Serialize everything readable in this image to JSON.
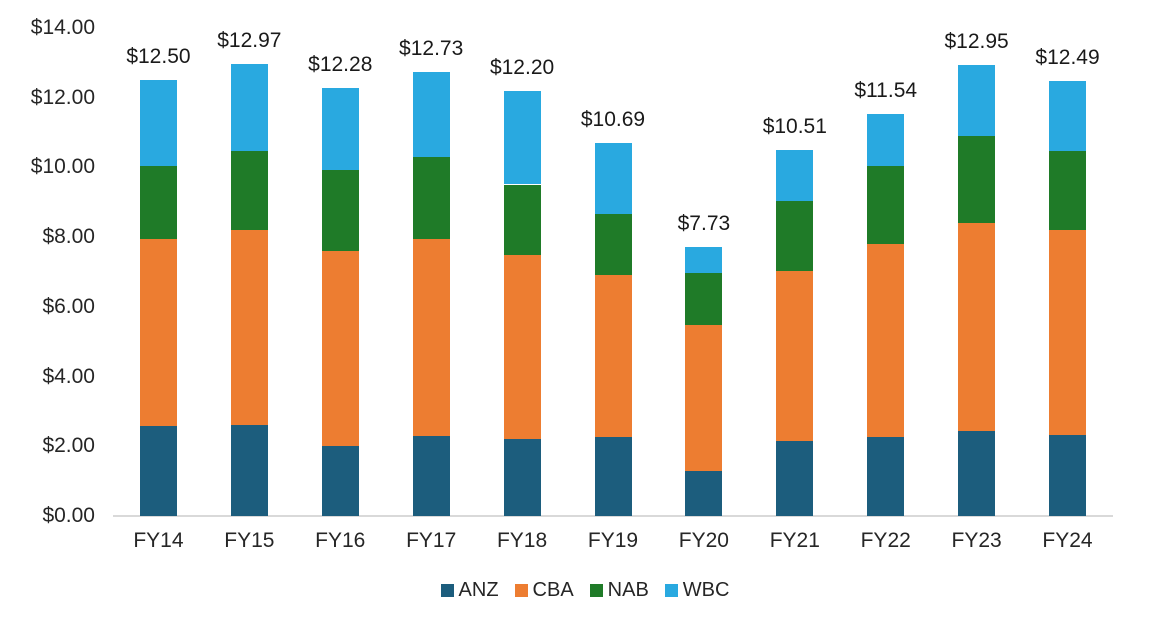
{
  "chart_data": {
    "type": "bar",
    "stacked": true,
    "title": "",
    "xlabel": "",
    "ylabel": "",
    "categories": [
      "FY14",
      "FY15",
      "FY16",
      "FY17",
      "FY18",
      "FY19",
      "FY20",
      "FY21",
      "FY22",
      "FY23",
      "FY24"
    ],
    "series": [
      {
        "name": "ANZ",
        "color": "#1C5D7D",
        "values": [
          2.59,
          2.6,
          2.02,
          2.29,
          2.2,
          2.27,
          1.3,
          2.14,
          2.27,
          2.45,
          2.31
        ]
      },
      {
        "name": "CBA",
        "color": "#ED7D31",
        "values": [
          5.36,
          5.6,
          5.59,
          5.66,
          5.29,
          4.64,
          4.18,
          4.89,
          5.54,
          5.96,
          5.9
        ]
      },
      {
        "name": "NAB",
        "color": "#1F7B28",
        "values": [
          2.1,
          2.28,
          2.33,
          2.34,
          2.02,
          1.76,
          1.48,
          2.01,
          2.24,
          2.48,
          2.26
        ]
      },
      {
        "name": "WBC",
        "color": "#29A9E0",
        "values": [
          2.45,
          2.49,
          2.34,
          2.44,
          2.69,
          2.02,
          0.77,
          1.47,
          1.49,
          2.06,
          2.02
        ]
      }
    ],
    "totals": [
      12.5,
      12.97,
      12.28,
      12.73,
      12.2,
      10.69,
      7.73,
      10.51,
      11.54,
      12.95,
      12.49
    ],
    "totals_labels": [
      "$12.50",
      "$12.97",
      "$12.28",
      "$12.73",
      "$12.20",
      "$10.69",
      "$7.73",
      "$10.51",
      "$11.54",
      "$12.95",
      "$12.49"
    ],
    "y_axis": {
      "min": 0,
      "max": 14,
      "tick_step": 2,
      "ticks": [
        {
          "value": 0,
          "label": "$0.00"
        },
        {
          "value": 2,
          "label": "$2.00"
        },
        {
          "value": 4,
          "label": "$4.00"
        },
        {
          "value": 6,
          "label": "$6.00"
        },
        {
          "value": 8,
          "label": "$8.00"
        },
        {
          "value": 10,
          "label": "$10.00"
        },
        {
          "value": 12,
          "label": "$12.00"
        },
        {
          "value": 14,
          "label": "$14.00"
        }
      ]
    },
    "legend": {
      "position": "bottom",
      "entries": [
        "ANZ",
        "CBA",
        "NAB",
        "WBC"
      ]
    },
    "gridlines": false,
    "style": {
      "background": "#FFFFFF",
      "axis_line_color": "#D9D9D9",
      "tick_label_color": "#262626",
      "data_label_color": "#1A1A1A"
    }
  }
}
